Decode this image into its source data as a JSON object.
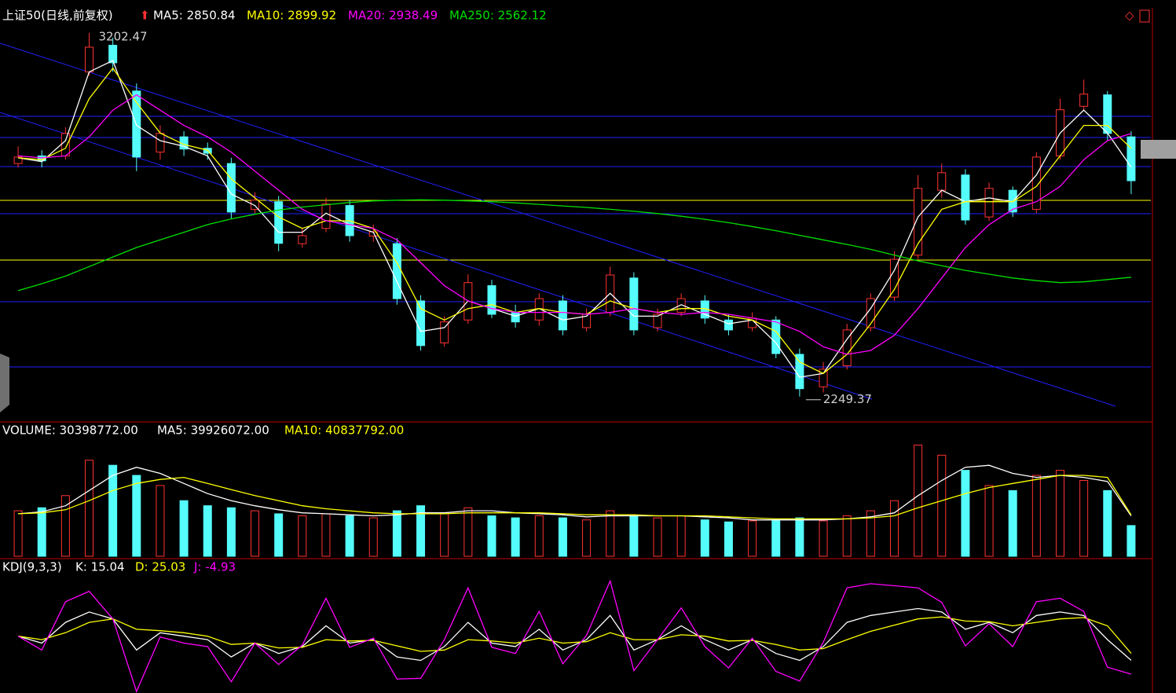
{
  "chart_data": [
    {
      "type": "candlestick",
      "title": "上证50(日线,前复权)",
      "up_color": "#ff3232",
      "down_color": "#54fcfc",
      "open": [
        2860,
        2880,
        2880,
        3100,
        3170,
        3050,
        2890,
        2930,
        2900,
        2860,
        2740,
        2760,
        2650,
        2690,
        2750,
        2670,
        2650,
        2500,
        2390,
        2450,
        2540,
        2470,
        2450,
        2500,
        2430,
        2470,
        2560,
        2430,
        2470,
        2500,
        2450,
        2430,
        2450,
        2360,
        2275,
        2330,
        2430,
        2510,
        2620,
        2790,
        2830,
        2720,
        2790,
        2740,
        2880,
        3010,
        3040,
        2930
      ],
      "high": [
        2905,
        2895,
        2955,
        3202.47,
        3190,
        3070,
        2960,
        2945,
        2915,
        2875,
        2785,
        2775,
        2690,
        2770,
        2765,
        2700,
        2665,
        2515,
        2460,
        2570,
        2555,
        2490,
        2520,
        2515,
        2480,
        2590,
        2575,
        2480,
        2520,
        2515,
        2465,
        2470,
        2460,
        2375,
        2340,
        2440,
        2520,
        2630,
        2830,
        2860,
        2845,
        2810,
        2800,
        2890,
        3030,
        3080,
        3050,
        2945
      ],
      "low": [
        2850,
        2850,
        2870,
        3090,
        3100,
        2840,
        2870,
        2880,
        2870,
        2715,
        2730,
        2630,
        2640,
        2680,
        2655,
        2655,
        2490,
        2370,
        2380,
        2440,
        2455,
        2430,
        2435,
        2410,
        2420,
        2460,
        2410,
        2420,
        2460,
        2440,
        2410,
        2420,
        2350,
        2249.37,
        2260,
        2320,
        2420,
        2500,
        2610,
        2770,
        2700,
        2710,
        2720,
        2730,
        2870,
        3000,
        2920,
        2780
      ],
      "close": [
        2877,
        2867,
        2939,
        3165,
        3124,
        2877,
        2939,
        2898,
        2887,
        2733,
        2764,
        2651,
        2671,
        2754,
        2671,
        2681,
        2506,
        2383,
        2445,
        2548,
        2465,
        2445,
        2506,
        2424,
        2465,
        2568,
        2424,
        2465,
        2506,
        2455,
        2424,
        2455,
        2362,
        2270,
        2321,
        2424,
        2506,
        2609,
        2795,
        2836,
        2712,
        2795,
        2733,
        2877,
        3001,
        3042,
        2939,
        2815
      ],
      "series": [
        {
          "name": "MA5: 2850.84",
          "color": "#ffffff",
          "values": [
            2875,
            2865,
            2920,
            3100,
            3130,
            2960,
            2920,
            2905,
            2880,
            2780,
            2750,
            2680,
            2680,
            2730,
            2700,
            2680,
            2550,
            2420,
            2430,
            2500,
            2480,
            2460,
            2480,
            2450,
            2460,
            2520,
            2460,
            2460,
            2490,
            2465,
            2440,
            2450,
            2390,
            2300,
            2310,
            2400,
            2480,
            2580,
            2720,
            2790,
            2760,
            2770,
            2760,
            2830,
            2940,
            3000,
            2940,
            2850.84
          ]
        },
        {
          "name": "MA10: 2899.92",
          "color": "#ffff00",
          "values": [
            2875,
            2870,
            2900,
            3030,
            3110,
            3020,
            2940,
            2910,
            2895,
            2820,
            2770,
            2720,
            2690,
            2710,
            2710,
            2690,
            2600,
            2480,
            2450,
            2480,
            2490,
            2470,
            2480,
            2470,
            2465,
            2500,
            2480,
            2470,
            2480,
            2480,
            2460,
            2450,
            2420,
            2340,
            2310,
            2360,
            2440,
            2530,
            2650,
            2740,
            2760,
            2760,
            2760,
            2800,
            2880,
            2960,
            2960,
            2899.92
          ]
        },
        {
          "name": "MA20: 2938.49",
          "color": "#ff00ff",
          "values": [
            2880,
            2875,
            2880,
            2930,
            3000,
            3040,
            3000,
            2960,
            2930,
            2890,
            2840,
            2790,
            2740,
            2710,
            2700,
            2690,
            2660,
            2600,
            2540,
            2500,
            2480,
            2470,
            2470,
            2470,
            2465,
            2470,
            2480,
            2470,
            2465,
            2470,
            2465,
            2455,
            2445,
            2420,
            2380,
            2360,
            2370,
            2410,
            2480,
            2560,
            2640,
            2700,
            2740,
            2760,
            2800,
            2870,
            2920,
            2938.49
          ]
        },
        {
          "name": "MA250: 2562.12",
          "color": "#00e000",
          "values": [
            2527,
            2545,
            2565,
            2590,
            2615,
            2640,
            2660,
            2680,
            2700,
            2715,
            2727,
            2738,
            2746,
            2752,
            2758,
            2762,
            2764,
            2765,
            2764,
            2762,
            2760,
            2757,
            2753,
            2749,
            2745,
            2740,
            2735,
            2729,
            2722,
            2714,
            2705,
            2695,
            2684,
            2672,
            2660,
            2648,
            2635,
            2620,
            2605,
            2592,
            2580,
            2570,
            2560,
            2553,
            2548,
            2550,
            2556,
            2562.12
          ]
        }
      ],
      "ylim": [
        2187,
        3268
      ]
    },
    {
      "type": "bar",
      "title": "VOLUME: 30398772.00",
      "values": [
        45000000.0,
        48000000.0,
        60000000.0,
        95000000.0,
        90000000.0,
        80000000.0,
        70000000.0,
        55000000.0,
        50000000.0,
        48000000.0,
        45000000.0,
        42000000.0,
        40000000.0,
        42000000.0,
        40000000.0,
        38000000.0,
        45000000.0,
        50000000.0,
        42000000.0,
        48000000.0,
        40000000.0,
        38000000.0,
        40000000.0,
        38000000.0,
        36000000.0,
        45000000.0,
        40000000.0,
        38000000.0,
        40000000.0,
        36000000.0,
        34000000.0,
        35000000.0,
        36000000.0,
        38000000.0,
        35000000.0,
        40000000.0,
        45000000.0,
        55000000.0,
        110000000.0,
        100000000.0,
        85000000.0,
        70000000.0,
        65000000.0,
        80000000.0,
        85000000.0,
        75000000.0,
        65000000.0,
        30398772
      ],
      "series": [
        {
          "name": "MA5: 39926072.00",
          "color": "#ffffff",
          "values": [
            42000000.0,
            44000000.0,
            50000000.0,
            65000000.0,
            80000000.0,
            88000000.0,
            82000000.0,
            72000000.0,
            62000000.0,
            55000000.0,
            50000000.0,
            46000000.0,
            43000000.0,
            42000000.0,
            41000000.0,
            40000000.0,
            41000000.0,
            43000000.0,
            43000000.0,
            45000000.0,
            45000000.0,
            43000000.0,
            42000000.0,
            41000000.0,
            39000000.0,
            40000000.0,
            40000000.0,
            40000000.0,
            40000000.0,
            39000000.0,
            38000000.0,
            36000000.0,
            36000000.0,
            36000000.0,
            36000000.0,
            37000000.0,
            39000000.0,
            43000000.0,
            60000000.0,
            75000000.0,
            88000000.0,
            90000000.0,
            82000000.0,
            78000000.0,
            80000000.0,
            78000000.0,
            74000000.0,
            39926072
          ]
        },
        {
          "name": "MA10: 40837792.00",
          "color": "#ffff00",
          "values": [
            42000000.0,
            43000000.0,
            46000000.0,
            55000000.0,
            65000000.0,
            72000000.0,
            76000000.0,
            78000000.0,
            72000000.0,
            66000000.0,
            60000000.0,
            55000000.0,
            50000000.0,
            47000000.0,
            45000000.0,
            43000000.0,
            42000000.0,
            42000000.0,
            42000000.0,
            43000000.0,
            43000000.0,
            43000000.0,
            43000000.0,
            42000000.0,
            41000000.0,
            41000000.0,
            41000000.0,
            40000000.0,
            40000000.0,
            40000000.0,
            39000000.0,
            38000000.0,
            37000000.0,
            37000000.0,
            37000000.0,
            37000000.0,
            38000000.0,
            40000000.0,
            48000000.0,
            55000000.0,
            62000000.0,
            68000000.0,
            72000000.0,
            76000000.0,
            80000000.0,
            80000000.0,
            78000000.0,
            40837792
          ]
        }
      ],
      "ylim": [
        0,
        115000000
      ]
    },
    {
      "type": "line",
      "title": "KDJ(9,3,3)",
      "series": [
        {
          "name": "K: 15.04",
          "color": "#ffffff",
          "values": [
            50,
            40,
            70,
            85,
            75,
            30,
            55,
            50,
            45,
            20,
            40,
            25,
            35,
            65,
            40,
            45,
            20,
            15,
            35,
            70,
            40,
            35,
            60,
            30,
            45,
            80,
            30,
            45,
            65,
            45,
            30,
            45,
            25,
            15,
            35,
            70,
            80,
            85,
            90,
            85,
            60,
            70,
            55,
            80,
            85,
            80,
            45,
            15.04
          ]
        },
        {
          "name": "D: 25.03",
          "color": "#ffff00",
          "values": [
            50,
            45,
            55,
            70,
            75,
            60,
            58,
            55,
            50,
            38,
            40,
            33,
            34,
            45,
            43,
            44,
            36,
            28,
            30,
            45,
            43,
            40,
            47,
            40,
            42,
            55,
            45,
            45,
            52,
            50,
            43,
            44,
            38,
            30,
            32,
            45,
            57,
            66,
            75,
            78,
            72,
            71,
            65,
            70,
            75,
            77,
            65,
            25.03
          ]
        },
        {
          "name": "J: -4.93",
          "color": "#ff00ff",
          "values": [
            50,
            30,
            100,
            115,
            75,
            -30,
            49,
            40,
            35,
            -16,
            40,
            9,
            37,
            105,
            34,
            47,
            -12,
            -11,
            45,
            120,
            34,
            25,
            86,
            10,
            51,
            130,
            0,
            45,
            91,
            35,
            4,
            47,
            -1,
            -15,
            41,
            120,
            126,
            123,
            120,
            99,
            36,
            68,
            35,
            100,
            105,
            86,
            5,
            -4.93
          ]
        }
      ],
      "ylim": [
        -30,
        135
      ]
    }
  ]
}
